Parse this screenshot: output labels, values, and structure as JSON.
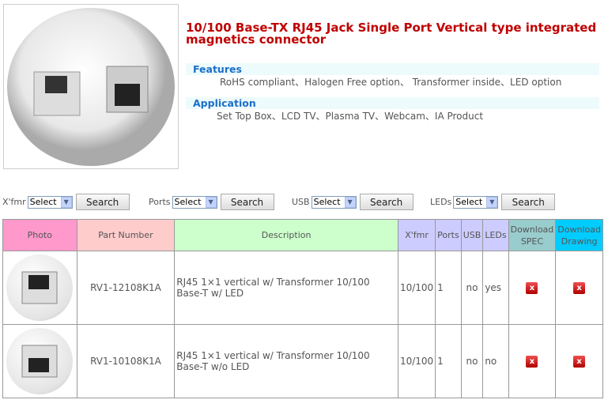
{
  "product": {
    "title": "10/100 Base-TX RJ45 Jack Single Port Vertical type  integrated magnetics connector",
    "features_label": "Features",
    "features_text": "RoHS compliant、Halogen Free  option、 Transformer inside、LED option",
    "application_label": "Application",
    "application_text": "Set Top Box、LCD TV、Plasma TV、Webcam、IA Product"
  },
  "filters": [
    {
      "label": "X'fmr",
      "value": "Select",
      "button": "Search"
    },
    {
      "label": "Ports",
      "value": "Select",
      "button": "Search"
    },
    {
      "label": "USB",
      "value": "Select",
      "button": "Search"
    },
    {
      "label": "LEDs",
      "value": "Select",
      "button": "Search"
    }
  ],
  "table": {
    "headers": [
      "Photo",
      "Part Number",
      "Description",
      "X'fmr",
      "Ports",
      "USB",
      "LEDs",
      "Download SPEC",
      "Download Drawing"
    ],
    "header_colors": [
      "#ff99cc",
      "#ffcccc",
      "#ccffcc",
      "#ccccff",
      "#ccccff",
      "#ccccff",
      "#ccccff",
      "#99cccc",
      "#00ccff"
    ],
    "rows": [
      {
        "part": "RV1-12108K1A",
        "desc": "RJ45 1×1 vertical w/ Transformer 10/100 Base-T w/ LED",
        "xfmr": "10/100",
        "ports": "1",
        "usb": "no",
        "leds": "yes",
        "icon": "close-icon"
      },
      {
        "part": "RV1-10108K1A",
        "desc": "RJ45 1×1 vertical w/ Transformer 10/100 Base-T w/o LED",
        "xfmr": "10/100",
        "ports": "1",
        "usb": "no",
        "leds": "no",
        "icon": "close-icon"
      }
    ]
  }
}
